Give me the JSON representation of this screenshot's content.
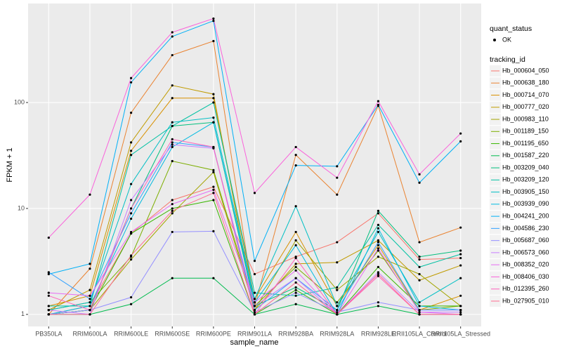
{
  "chart_data": {
    "type": "line",
    "xlabel": "sample_name",
    "ylabel": "FPKM + 1",
    "log_scale": true,
    "grid": true,
    "ylim": [
      0.77,
      860
    ],
    "yticks": [
      1,
      10,
      100
    ],
    "categories": [
      "PB350LA",
      "RRIM600LA",
      "RRIM600LE",
      "RRIM600SE",
      "RRIM600PE",
      "RRIM901LA",
      "RRIM928BA",
      "RRIM928LA",
      "RRIM928LE",
      "RRII105LA_Control",
      "RRII105LA_Stressed"
    ],
    "shape_legend": {
      "title": "quant_status",
      "labels": [
        "OK"
      ]
    },
    "legend_title": "tracking_id",
    "series": [
      {
        "name": "Hb_000604_050",
        "color": "#F8766D",
        "values": [
          1.0,
          1.2,
          5.8,
          12,
          16,
          2.4,
          3.5,
          4.8,
          9,
          3.3,
          3.4
        ]
      },
      {
        "name": "Hb_000638_180",
        "color": "#EA8331",
        "values": [
          1.0,
          2.7,
          80,
          280,
          380,
          1.2,
          32,
          13.5,
          93,
          4.8,
          6.6
        ]
      },
      {
        "name": "Hb_000714_070",
        "color": "#D89000",
        "values": [
          1.2,
          1.5,
          35,
          110,
          110,
          1.4,
          6,
          1.2,
          4.5,
          1.1,
          1.5
        ]
      },
      {
        "name": "Hb_000777_020",
        "color": "#C09B00",
        "values": [
          1.1,
          1.7,
          42,
          145,
          120,
          1.1,
          3,
          3.1,
          5,
          2.1,
          2.9
        ]
      },
      {
        "name": "Hb_000983_110",
        "color": "#A3A500",
        "values": [
          1.0,
          1.1,
          3.3,
          9,
          22,
          1.1,
          5,
          1.7,
          3.5,
          2.4,
          1.2
        ]
      },
      {
        "name": "Hb_001189_150",
        "color": "#7CAE00",
        "values": [
          1.1,
          1.3,
          3.5,
          28,
          23,
          1.2,
          2.8,
          1.3,
          4,
          1.1,
          1.2
        ]
      },
      {
        "name": "Hb_001195_650",
        "color": "#39B600",
        "values": [
          1.0,
          1.1,
          5.8,
          10,
          12,
          1.0,
          1.7,
          1.0,
          2.8,
          1.2,
          1.2
        ]
      },
      {
        "name": "Hb_001587_220",
        "color": "#00BB4E",
        "values": [
          1.0,
          1.0,
          1.25,
          2.2,
          2.2,
          1.0,
          1.25,
          1.0,
          1.2,
          1.0,
          1.0
        ]
      },
      {
        "name": "Hb_003209_040",
        "color": "#00BF7D",
        "values": [
          1.0,
          1.1,
          10,
          60,
          65,
          1.2,
          1.8,
          1.1,
          9.5,
          3.5,
          4.0
        ]
      },
      {
        "name": "Hb_003209_120",
        "color": "#00C1A3",
        "values": [
          1.2,
          1.2,
          32,
          60,
          100,
          1.6,
          1.5,
          1.8,
          7,
          2.8,
          3.7
        ]
      },
      {
        "name": "Hb_003905_150",
        "color": "#00BFC4",
        "values": [
          1.1,
          1.3,
          17,
          65,
          72,
          1.4,
          10.5,
          1.2,
          6,
          1.3,
          2.2
        ]
      },
      {
        "name": "Hb_003939_090",
        "color": "#00BAE0",
        "values": [
          1.0,
          1.2,
          8,
          38,
          65,
          1.3,
          4.5,
          1.0,
          6.5,
          1.2,
          1.1
        ]
      },
      {
        "name": "Hb_004241_200",
        "color": "#00B0F6",
        "values": [
          2.4,
          3.0,
          155,
          420,
          590,
          3.2,
          25.5,
          25,
          95,
          17.5,
          43
        ]
      },
      {
        "name": "Hb_004586_230",
        "color": "#35A2FF",
        "values": [
          2.5,
          1.4,
          9,
          42,
          38,
          1.1,
          2.2,
          1.1,
          4.8,
          1.1,
          1.1
        ]
      },
      {
        "name": "Hb_005687_060",
        "color": "#9590FF",
        "values": [
          1.0,
          1.1,
          1.45,
          6,
          6.1,
          1.05,
          1.6,
          1.05,
          1.3,
          1.1,
          1.1
        ]
      },
      {
        "name": "Hb_006573_060",
        "color": "#C77CFF",
        "values": [
          1.1,
          1.0,
          12,
          40,
          37,
          1.2,
          2.2,
          1.0,
          2.5,
          1.05,
          1.05
        ]
      },
      {
        "name": "Hb_008352_020",
        "color": "#E76BF3",
        "values": [
          1.6,
          1.5,
          6,
          11,
          15,
          1.3,
          2.6,
          1.0,
          4.2,
          1.05,
          1.0
        ]
      },
      {
        "name": "Hb_008406_030",
        "color": "#FA62DB",
        "values": [
          5.3,
          13.5,
          170,
          460,
          620,
          14,
          38,
          19.5,
          103,
          21,
          51
        ]
      },
      {
        "name": "Hb_012395_260",
        "color": "#FF62BC",
        "values": [
          1.5,
          1.1,
          10,
          45,
          38,
          1.0,
          3.4,
          1.0,
          2.3,
          1.0,
          1.0
        ]
      },
      {
        "name": "Hb_027905_010",
        "color": "#FF6C91",
        "values": [
          1.0,
          1.0,
          3.6,
          9.5,
          14,
          1.0,
          2.0,
          1.0,
          2.4,
          1.0,
          1.0
        ]
      }
    ]
  }
}
